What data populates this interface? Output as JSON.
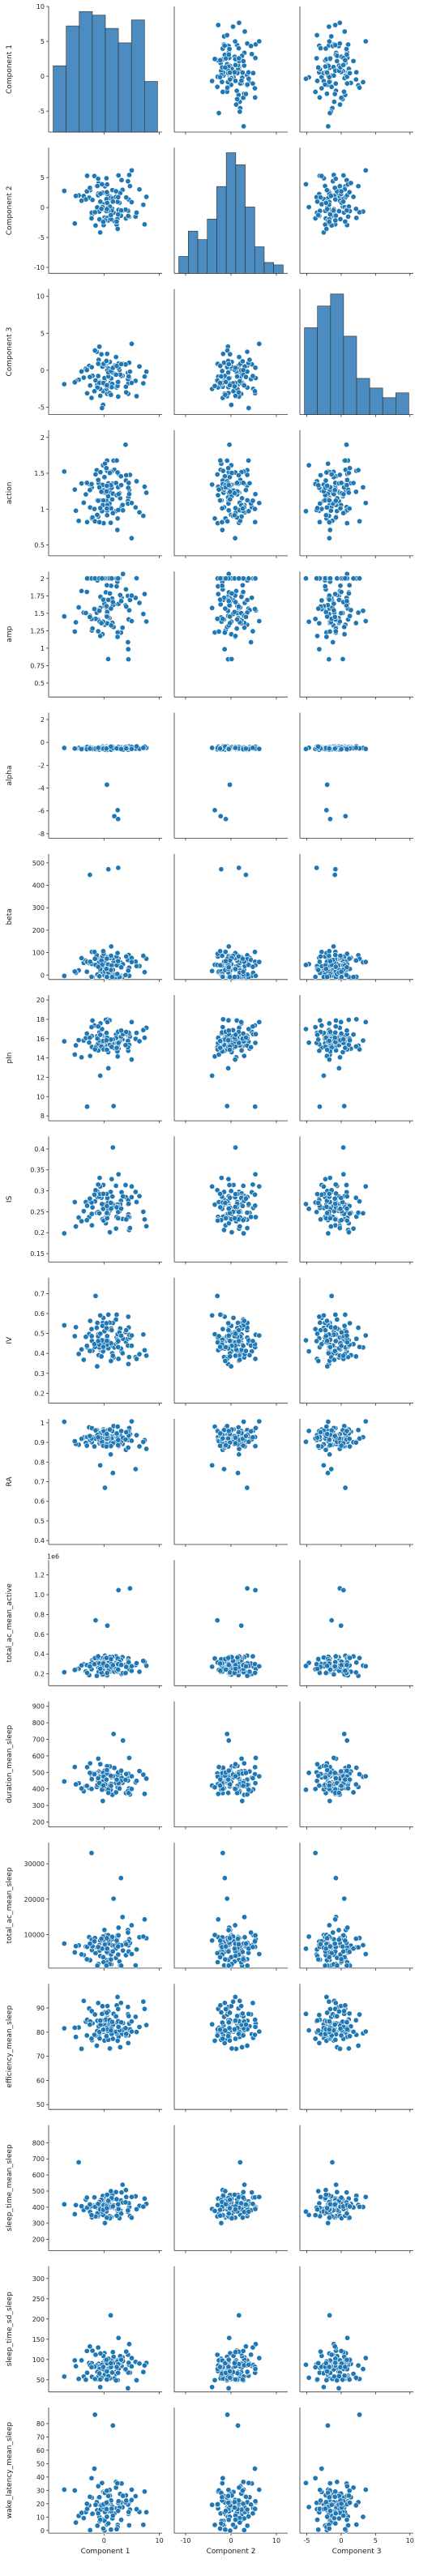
{
  "chart_data": {
    "type": "pairplot",
    "x_vars": [
      "Component 1",
      "Component 2",
      "Component 3"
    ],
    "x_ticks": {
      "Component 1": [
        0,
        10
      ],
      "Component 2": [
        -10,
        0,
        10
      ],
      "Component 3": [
        -5,
        0,
        5,
        10
      ]
    },
    "x_ranges": {
      "Component 1": [
        -10,
        10.5
      ],
      "Component 2": [
        -12.5,
        12.5
      ],
      "Component 3": [
        -6,
        10.5
      ]
    },
    "marker_color": "#1f77b4",
    "hist_color": "#4c8cc0",
    "rows": [
      {
        "label": "Component 1",
        "ylim": [
          -8,
          10
        ],
        "yticks": [
          -5,
          0,
          5,
          10
        ],
        "y_center": 0.5,
        "y_spread": 4.8,
        "diag": "hist",
        "hist_heights": [
          0.55,
          0.88,
          1.0,
          0.97,
          0.86,
          0.74,
          0.93,
          0.42
        ]
      },
      {
        "label": "Component 2",
        "ylim": [
          -11,
          10
        ],
        "yticks": [
          -10,
          -5,
          0,
          5
        ],
        "y_center": 0.5,
        "y_spread": 4.0,
        "diag": "hist",
        "hist_heights": [
          0.14,
          0.35,
          0.28,
          0.45,
          0.72,
          1.0,
          0.9,
          0.55,
          0.22,
          0.09,
          0.07
        ]
      },
      {
        "label": "Component 3",
        "ylim": [
          -6,
          11
        ],
        "yticks": [
          -5,
          0,
          5,
          10
        ],
        "y_center": -0.5,
        "y_spread": 3.5,
        "diag": "hist",
        "hist_heights": [
          0.72,
          0.9,
          1.0,
          0.65,
          0.3,
          0.22,
          0.14,
          0.18
        ]
      },
      {
        "label": "action",
        "ylim": [
          0.35,
          2.1
        ],
        "yticks": [
          0.5,
          1.0,
          1.5,
          2.0
        ],
        "y_center": 1.2,
        "y_spread": 0.42,
        "diag": "scatter"
      },
      {
        "label": "amp",
        "ylim": [
          0.3,
          2.1
        ],
        "yticks": [
          0.5,
          0.75,
          1.0,
          1.25,
          1.5,
          1.75,
          2.0
        ],
        "y_center": 1.55,
        "y_spread": 0.45,
        "diag": "scatter",
        "cap": 2.0
      },
      {
        "label": "alpha",
        "ylim": [
          -8.4,
          2.6
        ],
        "yticks": [
          -8,
          -6,
          -4,
          -2,
          0,
          2
        ],
        "y_center": -0.5,
        "y_spread": 0.12,
        "diag": "scatter"
      },
      {
        "label": "beta",
        "ylim": [
          -20,
          540
        ],
        "yticks": [
          0,
          100,
          200,
          300,
          400,
          500
        ],
        "y_center": 40,
        "y_spread": 60,
        "diag": "scatter"
      },
      {
        "label": "pIn",
        "ylim": [
          7.5,
          20.5
        ],
        "yticks": [
          8,
          10,
          12,
          14,
          16,
          18,
          20
        ],
        "y_center": 15.8,
        "y_spread": 1.6,
        "diag": "scatter"
      },
      {
        "label": "IS",
        "ylim": [
          0.13,
          0.43
        ],
        "yticks": [
          0.15,
          0.2,
          0.25,
          0.3,
          0.35,
          0.4
        ],
        "y_center": 0.26,
        "y_spread": 0.05,
        "diag": "scatter"
      },
      {
        "label": "IV",
        "ylim": [
          0.15,
          0.78
        ],
        "yticks": [
          0.2,
          0.3,
          0.4,
          0.5,
          0.6,
          0.7
        ],
        "y_center": 0.47,
        "y_spread": 0.1,
        "diag": "scatter"
      },
      {
        "label": "RA",
        "ylim": [
          0.38,
          1.02
        ],
        "yticks": [
          0.4,
          0.5,
          0.6,
          0.7,
          0.8,
          0.9,
          1.0
        ],
        "y_center": 0.92,
        "y_spread": 0.06,
        "diag": "scatter"
      },
      {
        "label": "total_ac_mean_active",
        "ylim": [
          80000,
          1350000
        ],
        "yticks": [
          200000,
          400000,
          600000,
          800000,
          1000000,
          1200000
        ],
        "ytick_labels": [
          "0.2",
          "0.4",
          "0.6",
          "0.8",
          "1.0",
          "1.2"
        ],
        "offset_text": "1e6",
        "y_center": 280000,
        "y_spread": 90000,
        "diag": "scatter"
      },
      {
        "label": "duration_mean_sleep",
        "ylim": [
          170,
          930
        ],
        "yticks": [
          200,
          300,
          400,
          500,
          600,
          700,
          800,
          900
        ],
        "y_center": 460,
        "y_spread": 80,
        "diag": "scatter"
      },
      {
        "label": "total_ac_mean_sleep",
        "ylim": [
          500,
          36000
        ],
        "yticks": [
          10000,
          20000,
          30000
        ],
        "y_center": 7000,
        "y_spread": 4500,
        "diag": "scatter"
      },
      {
        "label": "efficiency_mean_sleep",
        "ylim": [
          48,
          100
        ],
        "yticks": [
          50,
          60,
          70,
          80,
          90
        ],
        "y_center": 83,
        "y_spread": 8,
        "diag": "scatter"
      },
      {
        "label": "sleep_time_mean_sleep",
        "ylim": [
          130,
          910
        ],
        "yticks": [
          200,
          300,
          400,
          500,
          600,
          700,
          800
        ],
        "y_center": 400,
        "y_spread": 80,
        "diag": "scatter"
      },
      {
        "label": "sleep_time_sd_sleep",
        "ylim": [
          20,
          330
        ],
        "yticks": [
          50,
          100,
          150,
          200,
          250,
          300
        ],
        "y_center": 85,
        "y_spread": 40,
        "diag": "scatter"
      },
      {
        "label": "wake_latency_mean_sleep",
        "ylim": [
          -2,
          92
        ],
        "yticks": [
          0,
          10,
          20,
          30,
          40,
          50,
          60,
          70,
          80
        ],
        "y_center": 20,
        "y_spread": 15,
        "diag": "scatter"
      }
    ],
    "n_points": 110,
    "xlabel_row": "Component 1",
    "grid": false,
    "legend": "none"
  }
}
